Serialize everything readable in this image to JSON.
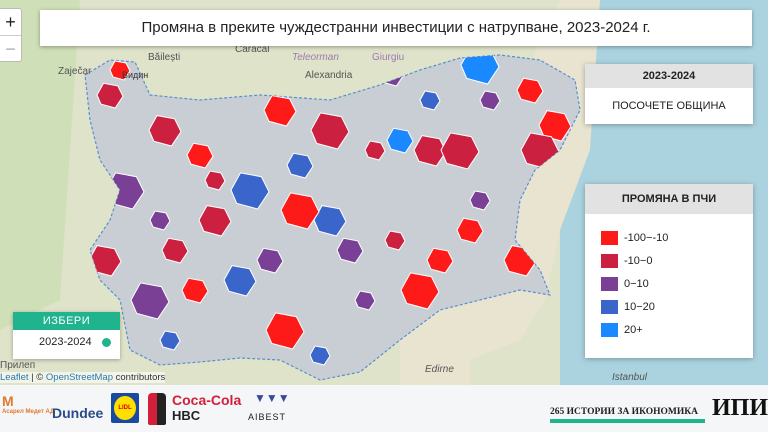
{
  "title": "Промяна в преките чуждестранни инвестиции с натрупване, 2023-2024 г.",
  "zoom": {
    "in": "+",
    "out": "−"
  },
  "map_labels": [
    "Băilești",
    "Caracal",
    "Teleorman",
    "Alexandria",
    "Giurgiu",
    "Zaječar",
    "Видин",
    "Прилеп",
    "Edirne",
    "Istanbul"
  ],
  "period_panel": {
    "header": "2023-2024",
    "prompt": "ПОСОЧЕТЕ ОБЩИНА"
  },
  "legend": {
    "title": "ПРОМЯНА В ПЧИ",
    "items": [
      {
        "label": "-100−-10",
        "color": "#ff1a1a"
      },
      {
        "label": "-10−0",
        "color": "#cc2040"
      },
      {
        "label": "0−10",
        "color": "#7a4096"
      },
      {
        "label": "10−20",
        "color": "#3a66cc"
      },
      {
        "label": "20+",
        "color": "#1a88ff"
      }
    ]
  },
  "selector": {
    "header": "ИЗБЕРИ",
    "option": "2023-2024",
    "accent": "#20b48e"
  },
  "attribution": {
    "leaflet": "Leaflet",
    "sep": " | © ",
    "osm": "OpenStreetMap",
    "rest": " contributors"
  },
  "footer": {
    "logos": [
      "Асарел Медет АД",
      "Dundee",
      "LIDL",
      "Coca-Cola",
      "HBC",
      "AIBEST",
      "ИПИ"
    ],
    "series_link": "265 ИСТОРИИ ЗА ИКОНОМИКА"
  }
}
